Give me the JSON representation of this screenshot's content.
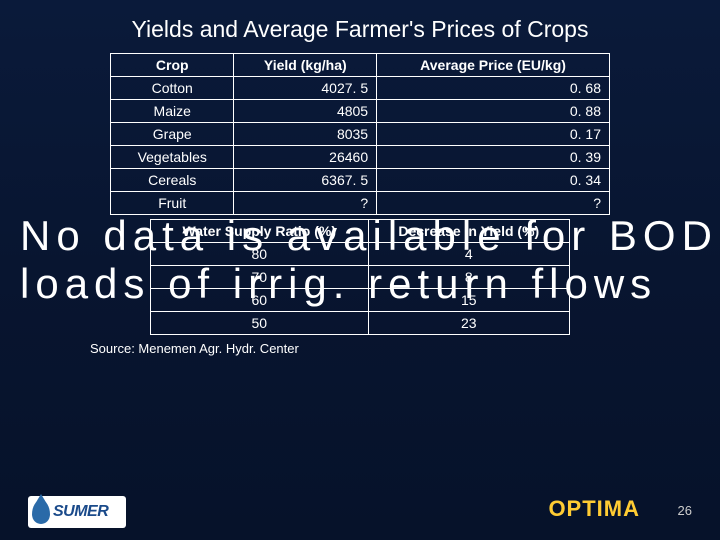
{
  "title": "Yields and Average Farmer's Prices of Crops",
  "table1": {
    "headers": [
      "Crop",
      "Yield (kg/ha)",
      "Average Price (EU/kg)"
    ],
    "rows": [
      [
        "Cotton",
        "4027. 5",
        "0. 68"
      ],
      [
        "Maize",
        "4805",
        "0. 88"
      ],
      [
        "Grape",
        "8035",
        "0. 17"
      ],
      [
        "Vegetables",
        "26460",
        "0. 39"
      ],
      [
        "Cereals",
        "6367. 5",
        "0. 34"
      ],
      [
        "Fruit",
        "?",
        "?"
      ]
    ]
  },
  "table2": {
    "headers": [
      "Water Supply Ratio (%)",
      "Decrease in Yield (%)"
    ],
    "rows": [
      [
        "80",
        "4"
      ],
      [
        "70",
        "8"
      ],
      [
        "60",
        "15"
      ],
      [
        "50",
        "23"
      ]
    ]
  },
  "overlay_text": "No data is available for BOD loads of irrig. return flows",
  "source": "Source: Menemen Agr. Hydr. Center",
  "logo_text": "SUMER",
  "brand": "OPTIMA",
  "page_number": "26"
}
